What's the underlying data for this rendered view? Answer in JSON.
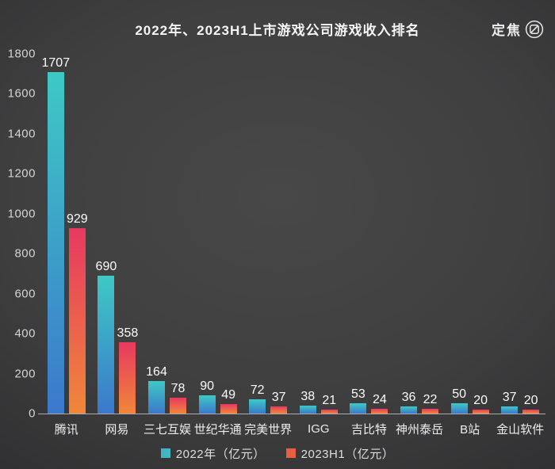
{
  "header": {
    "title": "2022年、2023H1上市游戏公司游戏收入排名",
    "brand": {
      "name": "定焦"
    }
  },
  "chart_data": {
    "type": "bar",
    "title": "2022年、2023H1上市游戏公司游戏收入排名",
    "categories": [
      "腾讯",
      "网易",
      "三七互娱",
      "世纪华通",
      "完美世界",
      "IGG",
      "吉比特",
      "神州泰岳",
      "B站",
      "金山软件"
    ],
    "series": [
      {
        "name": "2022年（亿元）",
        "values": [
          1707,
          690,
          164,
          90,
          72,
          38,
          53,
          36,
          50,
          37
        ],
        "color_top": "#3ec9c5",
        "color_bottom": "#3b78cc",
        "legend_color": "#41b5c0"
      },
      {
        "name": "2023H1（亿元）",
        "values": [
          929,
          358,
          78,
          49,
          37,
          21,
          24,
          22,
          20,
          20
        ],
        "color_top": "#e73960",
        "color_bottom": "#f0873a",
        "legend_color": "#e55f40"
      }
    ],
    "ylim": [
      0,
      1800
    ],
    "yticks": [
      1800,
      1600,
      1400,
      1200,
      1000,
      800,
      600,
      400,
      200,
      0
    ],
    "xlabel": "",
    "ylabel": "",
    "grid": false,
    "legend_position": "bottom",
    "value_labels": true,
    "background": "#3f3f40",
    "axis_line_color": "#ababab"
  }
}
